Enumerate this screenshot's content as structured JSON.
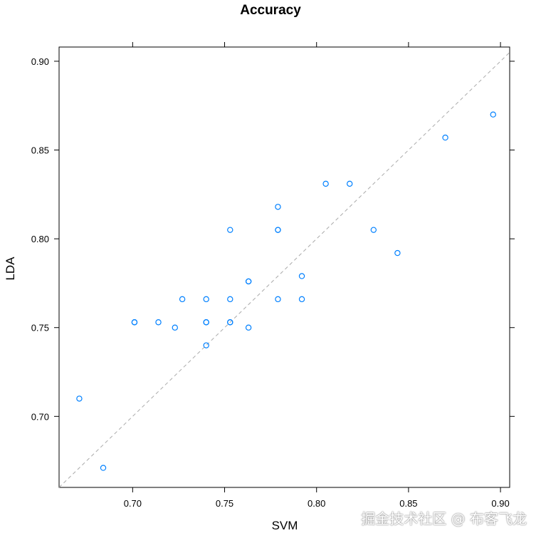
{
  "chart_data": {
    "type": "scatter",
    "title": "Accuracy",
    "xlabel": "SVM",
    "ylabel": "LDA",
    "xlim": [
      0.66,
      0.905
    ],
    "ylim": [
      0.66,
      0.908
    ],
    "xticks": [
      0.7,
      0.75,
      0.8,
      0.85,
      0.9
    ],
    "xtick_labels": [
      "0.70",
      "0.75",
      "0.80",
      "0.85",
      "0.90"
    ],
    "yticks": [
      0.7,
      0.75,
      0.8,
      0.85,
      0.9
    ],
    "ytick_labels": [
      "0.70",
      "0.75",
      "0.80",
      "0.85",
      "0.90"
    ],
    "reference_line": "y = x (dashed)",
    "grid": false,
    "marker_color": "#0080ff",
    "reference_color": "#aaaaaa",
    "points": [
      {
        "x": 0.671,
        "y": 0.71
      },
      {
        "x": 0.684,
        "y": 0.671
      },
      {
        "x": 0.701,
        "y": 0.753
      },
      {
        "x": 0.701,
        "y": 0.753
      },
      {
        "x": 0.714,
        "y": 0.753
      },
      {
        "x": 0.723,
        "y": 0.75
      },
      {
        "x": 0.727,
        "y": 0.766
      },
      {
        "x": 0.74,
        "y": 0.74
      },
      {
        "x": 0.74,
        "y": 0.753
      },
      {
        "x": 0.74,
        "y": 0.753
      },
      {
        "x": 0.74,
        "y": 0.766
      },
      {
        "x": 0.753,
        "y": 0.753
      },
      {
        "x": 0.753,
        "y": 0.753
      },
      {
        "x": 0.753,
        "y": 0.766
      },
      {
        "x": 0.753,
        "y": 0.805
      },
      {
        "x": 0.763,
        "y": 0.75
      },
      {
        "x": 0.763,
        "y": 0.776
      },
      {
        "x": 0.763,
        "y": 0.776
      },
      {
        "x": 0.779,
        "y": 0.766
      },
      {
        "x": 0.779,
        "y": 0.805
      },
      {
        "x": 0.779,
        "y": 0.805
      },
      {
        "x": 0.779,
        "y": 0.818
      },
      {
        "x": 0.792,
        "y": 0.766
      },
      {
        "x": 0.792,
        "y": 0.779
      },
      {
        "x": 0.805,
        "y": 0.831
      },
      {
        "x": 0.818,
        "y": 0.831
      },
      {
        "x": 0.831,
        "y": 0.805
      },
      {
        "x": 0.844,
        "y": 0.792
      },
      {
        "x": 0.87,
        "y": 0.857
      },
      {
        "x": 0.896,
        "y": 0.87
      }
    ]
  },
  "watermark": "掘金技术社区 @ 布客飞龙"
}
